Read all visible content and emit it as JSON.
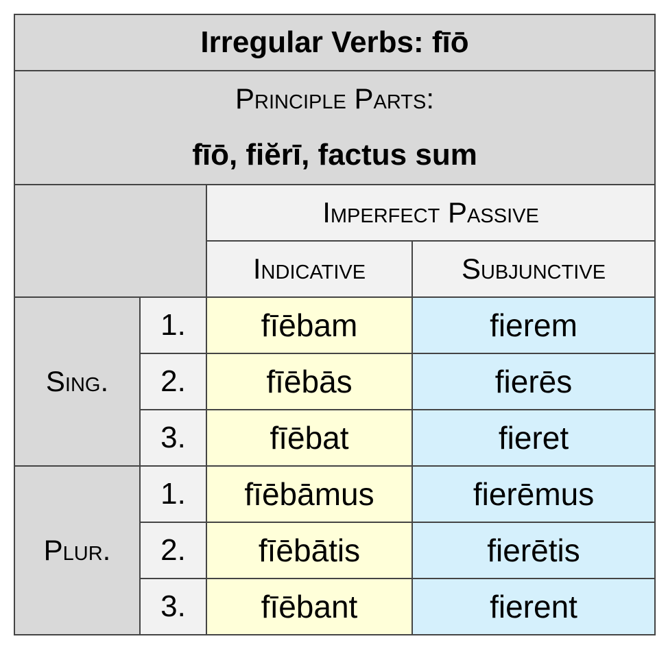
{
  "title": "Irregular Verbs: fīō",
  "principle_parts": {
    "label": "Principle Parts:",
    "forms": "fīō, fiĕrī, factus sum"
  },
  "header": {
    "tense": "Imperfect Passive",
    "moods": [
      "Indicative",
      "Subjunctive"
    ]
  },
  "groups": [
    {
      "label": "Sing.",
      "rows": [
        {
          "person": "1.",
          "indicative": "fīēbam",
          "subjunctive": "fierem"
        },
        {
          "person": "2.",
          "indicative": "fīēbās",
          "subjunctive": "fierēs"
        },
        {
          "person": "3.",
          "indicative": "fīēbat",
          "subjunctive": "fieret"
        }
      ]
    },
    {
      "label": "Plur.",
      "rows": [
        {
          "person": "1.",
          "indicative": "fīēbāmus",
          "subjunctive": "fierēmus"
        },
        {
          "person": "2.",
          "indicative": "fīēbātis",
          "subjunctive": "fierētis"
        },
        {
          "person": "3.",
          "indicative": "fīēbant",
          "subjunctive": "fierent"
        }
      ]
    }
  ],
  "colors": {
    "header_gray": "#d9d9d9",
    "header_light": "#f2f2f2",
    "indicative_bg": "#ffffd9",
    "subjunctive_bg": "#d5f0fc",
    "border": "#444444"
  }
}
